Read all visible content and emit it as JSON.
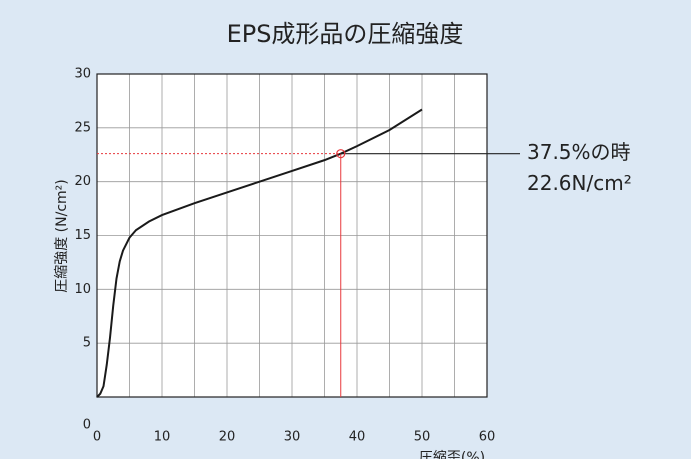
{
  "chart_data": {
    "type": "line",
    "title": "EPS成形品の圧縮強度",
    "x_label": "圧縮歪(%)",
    "y_label": "圧縮強度 (N/cm²)",
    "xlim": [
      0,
      60
    ],
    "ylim": [
      0,
      30
    ],
    "xticks": [
      0,
      10,
      20,
      30,
      40,
      50,
      60
    ],
    "yticks": [
      0,
      5,
      10,
      15,
      20,
      25,
      30
    ],
    "x_minor_grid": [
      5,
      15,
      25,
      35,
      45,
      55
    ],
    "grid": true,
    "series": [
      {
        "color": "#1a1a1a",
        "x": [
          0,
          0.5,
          1,
          1.5,
          2,
          2.5,
          3,
          3.5,
          4,
          5,
          6,
          8,
          10,
          15,
          20,
          25,
          30,
          35,
          37.5,
          40,
          45,
          50
        ],
        "values": [
          0,
          0.3,
          1,
          3,
          5.5,
          8.5,
          11,
          12.6,
          13.6,
          14.8,
          15.5,
          16.3,
          16.9,
          18,
          19,
          20,
          21,
          22,
          22.6,
          23.3,
          24.8,
          26.7
        ]
      }
    ],
    "annotation": {
      "x": 37.5,
      "y": 22.6,
      "color": "#e8383d",
      "label_lines": [
        "37.5%の時",
        "22.6N/cm²"
      ]
    }
  }
}
